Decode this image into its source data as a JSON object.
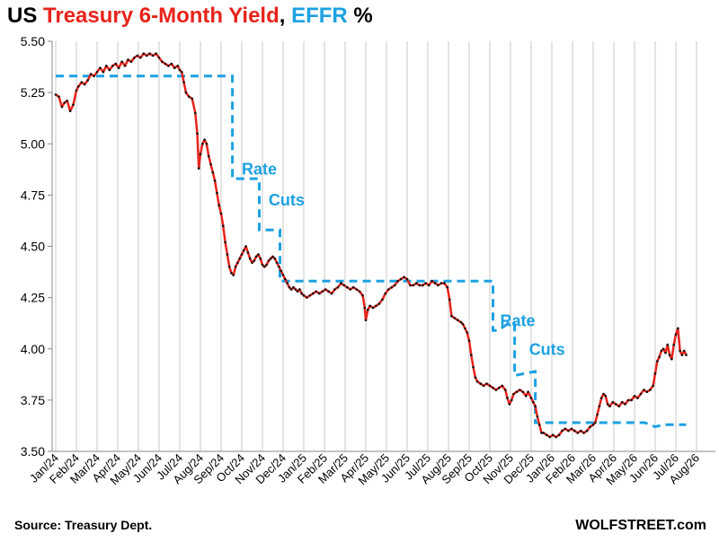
{
  "title": {
    "parts": [
      {
        "text": "US ",
        "color": "#000000"
      },
      {
        "text": "Treasury 6-Month Yield",
        "color": "#e8231b"
      },
      {
        "text": ", ",
        "color": "#000000"
      },
      {
        "text": "EFFR",
        "color": "#1da1e2"
      },
      {
        "text": " %",
        "color": "#000000"
      }
    ]
  },
  "footer": {
    "source": "Source: Treasury Dept.",
    "brand": "WOLFSTREET.com"
  },
  "colors": {
    "yield": "#e8231b",
    "yield_dots": "#111111",
    "effr": "#1da1e2",
    "grid": "#c8c8c8"
  },
  "chart_data": {
    "type": "line",
    "title": "US Treasury 6-Month Yield, EFFR %",
    "xlabel": "",
    "ylabel": "",
    "ylim": [
      3.5,
      5.5
    ],
    "y_ticks": [
      "3.50",
      "3.75",
      "4.00",
      "4.25",
      "4.50",
      "4.75",
      "5.00",
      "5.25",
      "5.50"
    ],
    "x_ticks": [
      "Jan/24",
      "Feb/24",
      "Mar/24",
      "Apr/24",
      "May/24",
      "Jun/24",
      "Jul/24",
      "Aug/24",
      "Sep/24",
      "Oct/24",
      "Nov/24",
      "Dec/24",
      "Jan/25",
      "Feb/25",
      "Mar/25",
      "Apr/25",
      "May/25",
      "Jun/25",
      "Jul/25",
      "Aug/25",
      "Sep/25",
      "Oct/25",
      "Nov/25",
      "Dec/25",
      "Jan/26",
      "Feb/26",
      "Mar/26",
      "Apr/26",
      "May/26",
      "Jun/26",
      "Jul/26",
      "Aug/26"
    ],
    "grid": "vertical",
    "annotations": [
      {
        "text": "Rate",
        "x": 9.0,
        "y": 4.85
      },
      {
        "text": "Cuts",
        "x": 10.3,
        "y": 4.7
      },
      {
        "text": "Rate",
        "x": 21.5,
        "y": 4.11
      },
      {
        "text": "Cuts",
        "x": 22.9,
        "y": 3.97
      }
    ],
    "series": [
      {
        "name": "Treasury 6-Month Yield",
        "points": [
          [
            0.0,
            5.24
          ],
          [
            0.15,
            5.23
          ],
          [
            0.3,
            5.18
          ],
          [
            0.42,
            5.2
          ],
          [
            0.55,
            5.21
          ],
          [
            0.7,
            5.16
          ],
          [
            0.85,
            5.19
          ],
          [
            1.0,
            5.26
          ],
          [
            1.1,
            5.28
          ],
          [
            1.25,
            5.3
          ],
          [
            1.4,
            5.29
          ],
          [
            1.55,
            5.31
          ],
          [
            1.7,
            5.34
          ],
          [
            1.85,
            5.33
          ],
          [
            2.0,
            5.35
          ],
          [
            2.15,
            5.37
          ],
          [
            2.3,
            5.35
          ],
          [
            2.45,
            5.38
          ],
          [
            2.6,
            5.36
          ],
          [
            2.75,
            5.38
          ],
          [
            2.9,
            5.39
          ],
          [
            3.05,
            5.37
          ],
          [
            3.2,
            5.4
          ],
          [
            3.35,
            5.38
          ],
          [
            3.5,
            5.41
          ],
          [
            3.65,
            5.4
          ],
          [
            3.8,
            5.42
          ],
          [
            3.95,
            5.43
          ],
          [
            4.1,
            5.42
          ],
          [
            4.25,
            5.44
          ],
          [
            4.4,
            5.43
          ],
          [
            4.55,
            5.44
          ],
          [
            4.7,
            5.43
          ],
          [
            4.85,
            5.44
          ],
          [
            5.0,
            5.42
          ],
          [
            5.15,
            5.4
          ],
          [
            5.3,
            5.39
          ],
          [
            5.45,
            5.38
          ],
          [
            5.6,
            5.39
          ],
          [
            5.75,
            5.37
          ],
          [
            5.9,
            5.38
          ],
          [
            6.0,
            5.36
          ],
          [
            6.1,
            5.35
          ],
          [
            6.2,
            5.3
          ],
          [
            6.3,
            5.25
          ],
          [
            6.45,
            5.23
          ],
          [
            6.6,
            5.22
          ],
          [
            6.75,
            5.15
          ],
          [
            6.85,
            5.05
          ],
          [
            6.92,
            4.88
          ],
          [
            7.0,
            4.95
          ],
          [
            7.1,
            5.0
          ],
          [
            7.2,
            5.02
          ],
          [
            7.3,
            5.0
          ],
          [
            7.4,
            4.94
          ],
          [
            7.5,
            4.9
          ],
          [
            7.6,
            4.86
          ],
          [
            7.7,
            4.82
          ],
          [
            7.8,
            4.76
          ],
          [
            7.9,
            4.7
          ],
          [
            8.0,
            4.66
          ],
          [
            8.1,
            4.6
          ],
          [
            8.2,
            4.52
          ],
          [
            8.3,
            4.46
          ],
          [
            8.4,
            4.4
          ],
          [
            8.5,
            4.37
          ],
          [
            8.6,
            4.36
          ],
          [
            8.7,
            4.4
          ],
          [
            8.8,
            4.42
          ],
          [
            8.9,
            4.44
          ],
          [
            9.0,
            4.46
          ],
          [
            9.1,
            4.48
          ],
          [
            9.2,
            4.5
          ],
          [
            9.3,
            4.47
          ],
          [
            9.4,
            4.44
          ],
          [
            9.5,
            4.42
          ],
          [
            9.6,
            4.43
          ],
          [
            9.7,
            4.45
          ],
          [
            9.8,
            4.46
          ],
          [
            9.9,
            4.44
          ],
          [
            10.0,
            4.41
          ],
          [
            10.1,
            4.4
          ],
          [
            10.2,
            4.41
          ],
          [
            10.3,
            4.43
          ],
          [
            10.4,
            4.44
          ],
          [
            10.5,
            4.45
          ],
          [
            10.6,
            4.44
          ],
          [
            10.7,
            4.42
          ],
          [
            10.8,
            4.4
          ],
          [
            10.9,
            4.38
          ],
          [
            11.0,
            4.36
          ],
          [
            11.1,
            4.34
          ],
          [
            11.2,
            4.32
          ],
          [
            11.3,
            4.3
          ],
          [
            11.4,
            4.29
          ],
          [
            11.5,
            4.3
          ],
          [
            11.6,
            4.29
          ],
          [
            11.7,
            4.28
          ],
          [
            11.8,
            4.29
          ],
          [
            11.9,
            4.27
          ],
          [
            12.0,
            4.26
          ],
          [
            12.15,
            4.25
          ],
          [
            12.3,
            4.26
          ],
          [
            12.45,
            4.27
          ],
          [
            12.6,
            4.28
          ],
          [
            12.75,
            4.27
          ],
          [
            12.9,
            4.28
          ],
          [
            13.05,
            4.29
          ],
          [
            13.2,
            4.28
          ],
          [
            13.35,
            4.27
          ],
          [
            13.5,
            4.29
          ],
          [
            13.65,
            4.3
          ],
          [
            13.8,
            4.32
          ],
          [
            13.95,
            4.31
          ],
          [
            14.1,
            4.3
          ],
          [
            14.25,
            4.29
          ],
          [
            14.4,
            4.3
          ],
          [
            14.55,
            4.29
          ],
          [
            14.7,
            4.28
          ],
          [
            14.85,
            4.26
          ],
          [
            14.95,
            4.2
          ],
          [
            15.0,
            4.14
          ],
          [
            15.1,
            4.19
          ],
          [
            15.2,
            4.21
          ],
          [
            15.35,
            4.2
          ],
          [
            15.5,
            4.21
          ],
          [
            15.65,
            4.22
          ],
          [
            15.8,
            4.24
          ],
          [
            15.95,
            4.27
          ],
          [
            16.1,
            4.29
          ],
          [
            16.25,
            4.3
          ],
          [
            16.4,
            4.31
          ],
          [
            16.55,
            4.33
          ],
          [
            16.7,
            4.34
          ],
          [
            16.85,
            4.35
          ],
          [
            17.0,
            4.34
          ],
          [
            17.15,
            4.31
          ],
          [
            17.3,
            4.31
          ],
          [
            17.45,
            4.32
          ],
          [
            17.6,
            4.31
          ],
          [
            17.75,
            4.31
          ],
          [
            17.9,
            4.32
          ],
          [
            18.05,
            4.31
          ],
          [
            18.2,
            4.33
          ],
          [
            18.35,
            4.32
          ],
          [
            18.5,
            4.31
          ],
          [
            18.65,
            4.32
          ],
          [
            18.8,
            4.32
          ],
          [
            18.95,
            4.3
          ],
          [
            19.05,
            4.24
          ],
          [
            19.15,
            4.16
          ],
          [
            19.3,
            4.15
          ],
          [
            19.45,
            4.14
          ],
          [
            19.6,
            4.13
          ],
          [
            19.7,
            4.12
          ],
          [
            19.8,
            4.1
          ],
          [
            19.9,
            4.08
          ],
          [
            20.0,
            4.04
          ],
          [
            20.1,
            3.97
          ],
          [
            20.2,
            3.91
          ],
          [
            20.3,
            3.86
          ],
          [
            20.4,
            3.84
          ],
          [
            20.55,
            3.83
          ],
          [
            20.7,
            3.82
          ],
          [
            20.85,
            3.83
          ],
          [
            21.0,
            3.82
          ],
          [
            21.15,
            3.81
          ],
          [
            21.3,
            3.8
          ],
          [
            21.45,
            3.81
          ],
          [
            21.6,
            3.82
          ],
          [
            21.75,
            3.8
          ],
          [
            21.85,
            3.76
          ],
          [
            21.95,
            3.73
          ],
          [
            22.05,
            3.75
          ],
          [
            22.15,
            3.78
          ],
          [
            22.3,
            3.79
          ],
          [
            22.45,
            3.8
          ],
          [
            22.6,
            3.79
          ],
          [
            22.75,
            3.77
          ],
          [
            22.85,
            3.79
          ],
          [
            23.0,
            3.76
          ],
          [
            23.1,
            3.74
          ],
          [
            23.2,
            3.72
          ],
          [
            23.3,
            3.67
          ],
          [
            23.4,
            3.63
          ],
          [
            23.5,
            3.59
          ],
          [
            23.6,
            3.59
          ],
          [
            23.75,
            3.58
          ],
          [
            23.9,
            3.57
          ],
          [
            24.05,
            3.58
          ],
          [
            24.2,
            3.57
          ],
          [
            24.35,
            3.58
          ],
          [
            24.5,
            3.6
          ],
          [
            24.65,
            3.61
          ],
          [
            24.8,
            3.6
          ],
          [
            24.95,
            3.61
          ],
          [
            25.1,
            3.6
          ],
          [
            25.25,
            3.59
          ],
          [
            25.4,
            3.6
          ],
          [
            25.55,
            3.59
          ],
          [
            25.7,
            3.6
          ],
          [
            25.85,
            3.62
          ],
          [
            26.0,
            3.63
          ],
          [
            26.1,
            3.64
          ],
          [
            26.2,
            3.68
          ],
          [
            26.3,
            3.72
          ],
          [
            26.4,
            3.76
          ],
          [
            26.5,
            3.78
          ],
          [
            26.6,
            3.77
          ],
          [
            26.7,
            3.73
          ],
          [
            26.8,
            3.72
          ],
          [
            26.95,
            3.74
          ],
          [
            27.1,
            3.73
          ],
          [
            27.25,
            3.72
          ],
          [
            27.4,
            3.74
          ],
          [
            27.55,
            3.73
          ],
          [
            27.7,
            3.75
          ],
          [
            27.85,
            3.75
          ],
          [
            28.0,
            3.77
          ],
          [
            28.15,
            3.76
          ],
          [
            28.3,
            3.78
          ],
          [
            28.45,
            3.8
          ],
          [
            28.6,
            3.79
          ],
          [
            28.75,
            3.8
          ],
          [
            28.9,
            3.82
          ],
          [
            29.0,
            3.88
          ],
          [
            29.1,
            3.94
          ],
          [
            29.2,
            3.96
          ],
          [
            29.3,
            3.99
          ],
          [
            29.4,
            4.0
          ],
          [
            29.5,
            3.98
          ],
          [
            29.6,
            4.02
          ],
          [
            29.7,
            3.97
          ],
          [
            29.8,
            3.95
          ],
          [
            29.9,
            4.02
          ],
          [
            30.0,
            4.07
          ],
          [
            30.1,
            4.1
          ],
          [
            30.2,
            3.99
          ],
          [
            30.3,
            3.97
          ],
          [
            30.4,
            3.99
          ],
          [
            30.5,
            3.97
          ]
        ]
      },
      {
        "name": "EFFR",
        "points": [
          [
            0.0,
            5.33
          ],
          [
            8.55,
            5.33
          ],
          [
            8.55,
            4.83
          ],
          [
            9.85,
            4.83
          ],
          [
            9.85,
            4.58
          ],
          [
            10.85,
            4.58
          ],
          [
            10.85,
            4.33
          ],
          [
            21.15,
            4.33
          ],
          [
            21.15,
            4.09
          ],
          [
            21.4,
            4.09
          ],
          [
            21.85,
            4.12
          ],
          [
            22.2,
            4.12
          ],
          [
            22.2,
            3.87
          ],
          [
            23.2,
            3.89
          ],
          [
            23.2,
            3.64
          ],
          [
            28.5,
            3.64
          ],
          [
            29.0,
            3.62
          ],
          [
            29.4,
            3.63
          ],
          [
            30.5,
            3.63
          ]
        ]
      }
    ]
  }
}
